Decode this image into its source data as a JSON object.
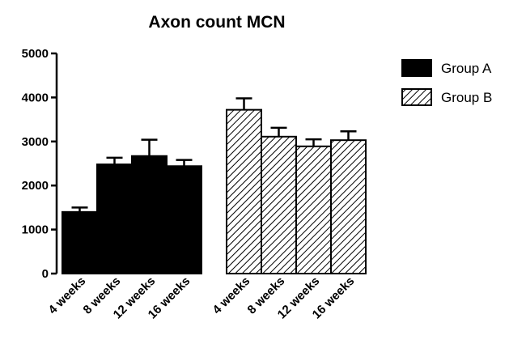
{
  "chart_data": {
    "type": "bar",
    "title": "Axon count MCN",
    "xlabel": "",
    "ylabel": "",
    "ylim": [
      0,
      5000
    ],
    "yticks": [
      0,
      1000,
      2000,
      3000,
      4000,
      5000
    ],
    "grid": false,
    "legend_position": "top-right",
    "series": [
      {
        "name": "Group A",
        "fill": "solid",
        "color": "#000000",
        "categories": [
          "4 weeks",
          "8 weeks",
          "12 weeks",
          "16 weeks"
        ],
        "values": [
          1400,
          2480,
          2670,
          2440
        ],
        "errors": [
          100,
          150,
          370,
          140
        ]
      },
      {
        "name": "Group B",
        "fill": "hatched",
        "color": "#000000",
        "categories": [
          "4 weeks",
          "8 weeks",
          "12 weeks",
          "16 weeks"
        ],
        "values": [
          3720,
          3110,
          2890,
          3030
        ],
        "errors": [
          260,
          200,
          160,
          200
        ]
      }
    ]
  }
}
